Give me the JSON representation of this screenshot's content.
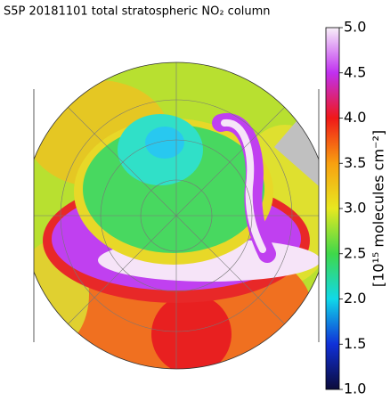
{
  "chart_data": {
    "type": "colormap-map",
    "title": "S5P 20181101 total stratospheric NO₂ column",
    "colorbar_label": "[10¹⁵ molecules cm⁻²]",
    "ylim": [
      1,
      5
    ],
    "yticks": [
      {
        "value": 1,
        "label": "1.0"
      },
      {
        "value": 1.5,
        "label": "1.5"
      },
      {
        "value": 2,
        "label": "2.0"
      },
      {
        "value": 2.5,
        "label": "2.5"
      },
      {
        "value": 3,
        "label": "3.0"
      },
      {
        "value": 3.5,
        "label": "3.5"
      },
      {
        "value": 4,
        "label": "4.0"
      },
      {
        "value": 4.5,
        "label": "4.5"
      },
      {
        "value": 5,
        "label": "5.0"
      }
    ],
    "colormap": [
      "#0b0b3a",
      "#1030d8",
      "#10d8e8",
      "#3fd84a",
      "#e8e820",
      "#f8a010",
      "#f01818",
      "#c030f0",
      "#f8f0f8"
    ]
  }
}
